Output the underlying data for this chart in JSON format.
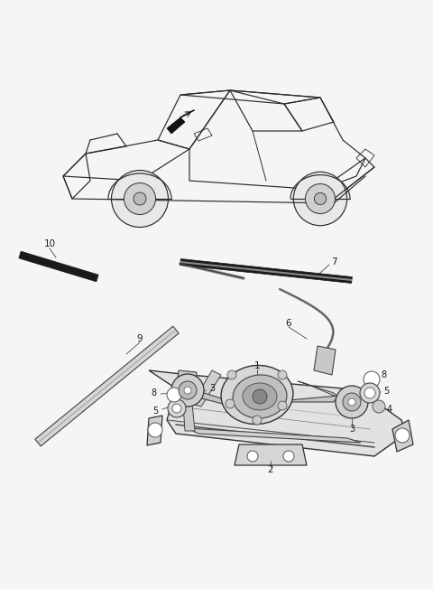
{
  "bg_color": "#f5f5f5",
  "line_color": "#2a2a2a",
  "fig_width": 4.8,
  "fig_height": 6.52,
  "dpi": 100,
  "car": {
    "color": "#2a2a2a",
    "lw": 0.9
  },
  "parts_color": "#2a2a2a",
  "gray_fill": "#c8c8c8",
  "light_gray": "#e0e0e0",
  "dark_gray": "#909090"
}
